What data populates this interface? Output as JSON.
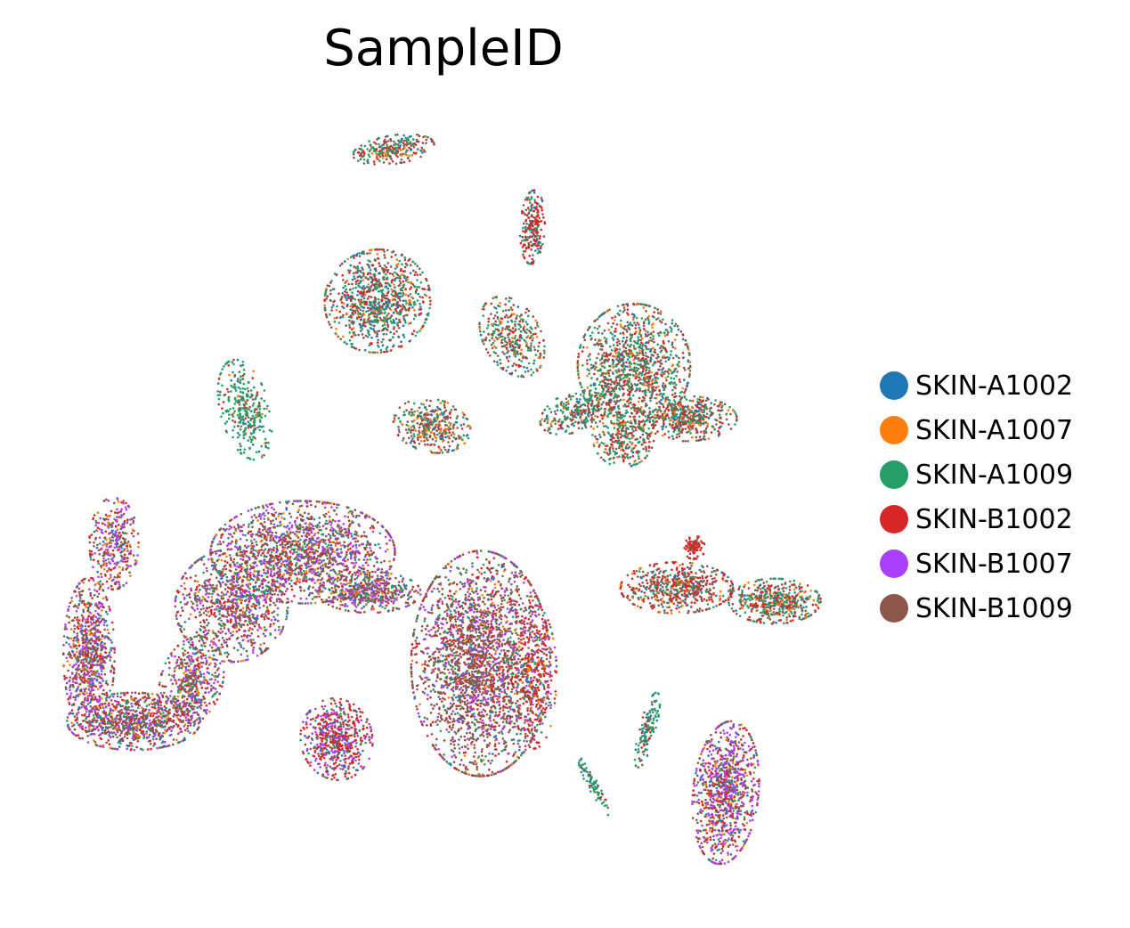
{
  "chart_data": {
    "type": "scatter",
    "title": "SampleID",
    "xlabel": "",
    "ylabel": "",
    "axes_visible": false,
    "grid": false,
    "legend_position": "right",
    "series": [
      {
        "name": "SKIN-A1002",
        "color": "#1f77b4"
      },
      {
        "name": "SKIN-A1007",
        "color": "#ff7f0e"
      },
      {
        "name": "SKIN-A1009",
        "color": "#279e68"
      },
      {
        "name": "SKIN-B1002",
        "color": "#d62728"
      },
      {
        "name": "SKIN-B1007",
        "color": "#aa40fc"
      },
      {
        "name": "SKIN-B1009",
        "color": "#8c564b"
      }
    ]
  }
}
